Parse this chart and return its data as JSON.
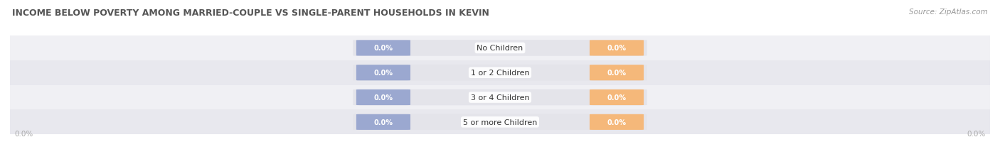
{
  "title": "INCOME BELOW POVERTY AMONG MARRIED-COUPLE VS SINGLE-PARENT HOUSEHOLDS IN KEVIN",
  "source_text": "Source: ZipAtlas.com",
  "categories": [
    "No Children",
    "1 or 2 Children",
    "3 or 4 Children",
    "5 or more Children"
  ],
  "married_values": [
    0.0,
    0.0,
    0.0,
    0.0
  ],
  "single_values": [
    0.0,
    0.0,
    0.0,
    0.0
  ],
  "married_color": "#9ba8d0",
  "single_color": "#f5b87a",
  "bar_bg_color": "#e4e4ea",
  "row_bg_even": "#f0f0f4",
  "row_bg_odd": "#e8e8ee",
  "category_label_color": "#333333",
  "title_color": "#555555",
  "source_color": "#999999",
  "axis_label_color": "#aaaaaa",
  "title_fontsize": 9.0,
  "source_fontsize": 7.5,
  "category_fontsize": 8.0,
  "value_fontsize": 7.0,
  "legend_fontsize": 8.0,
  "axis_fontsize": 7.5,
  "bar_height": 0.62
}
